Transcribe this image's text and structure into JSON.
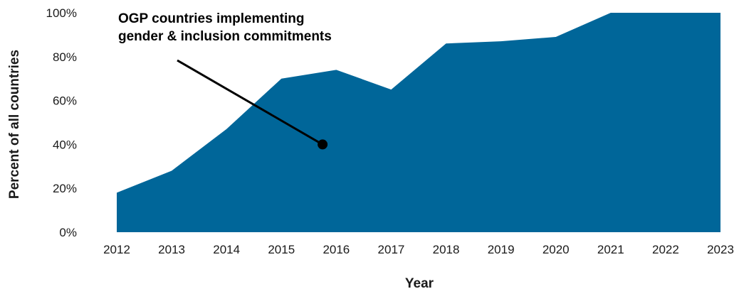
{
  "chart_data": {
    "type": "area",
    "x": [
      "2012",
      "2013",
      "2014",
      "2015",
      "2016",
      "2017",
      "2018",
      "2019",
      "2020",
      "2021",
      "2022",
      "2023"
    ],
    "series": [
      {
        "values": [
          18,
          28,
          47,
          70,
          74,
          65,
          86,
          87,
          89,
          100,
          100,
          100
        ]
      }
    ],
    "ylim": [
      0,
      100
    ],
    "yticks": [
      "0%",
      "20%",
      "40%",
      "60%",
      "80%",
      "100%"
    ],
    "xlabel": "Year",
    "ylabel": "Percent of all countries",
    "annotation": {
      "lines": [
        "OGP countries implementing",
        "gender & inclusion commitments"
      ],
      "point": {
        "x": 2015.75,
        "y": 40
      }
    },
    "grid": false,
    "legend": "none",
    "color": "#006699"
  }
}
